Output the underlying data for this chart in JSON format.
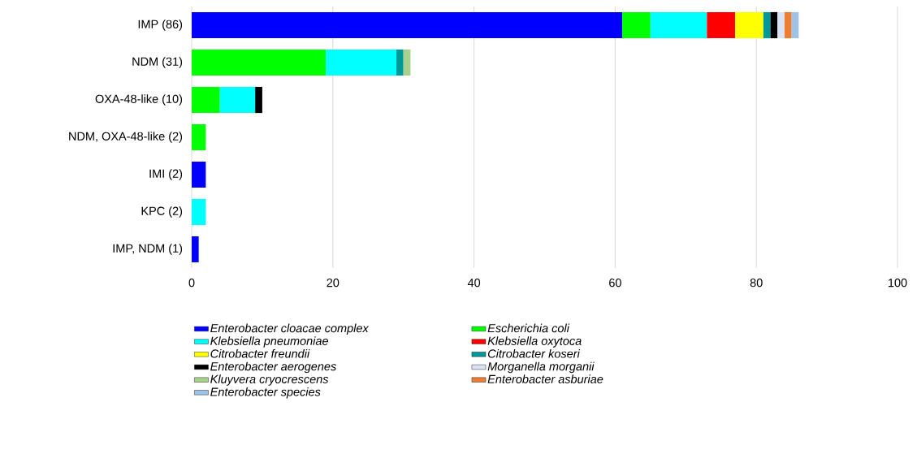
{
  "chart_data": {
    "type": "bar",
    "orientation": "horizontal",
    "stacked": true,
    "categories": [
      "IMP (86)",
      "NDM (31)",
      "OXA-48-like (10)",
      "NDM, OXA-48-like (2)",
      "IMI (2)",
      "KPC (2)",
      "IMP, NDM (1)"
    ],
    "series": [
      {
        "name": "Enterobacter cloacae complex",
        "color": "#0000ff",
        "values": [
          61,
          null,
          null,
          null,
          2,
          null,
          1
        ]
      },
      {
        "name": "Escherichia coli",
        "color": "#00ff00",
        "values": [
          4,
          19,
          4,
          2,
          null,
          null,
          null
        ]
      },
      {
        "name": "Klebsiella pneumoniae",
        "color": "#00ffff",
        "values": [
          8,
          10,
          5,
          null,
          null,
          2,
          null
        ]
      },
      {
        "name": "Klebsiella oxytoca",
        "color": "#ff0000",
        "values": [
          4,
          null,
          null,
          null,
          null,
          null,
          null
        ]
      },
      {
        "name": "Citrobacter freundii",
        "color": "#ffff00",
        "values": [
          4,
          null,
          null,
          null,
          null,
          null,
          null
        ]
      },
      {
        "name": "Citrobacter koseri",
        "color": "#009999",
        "values": [
          1,
          1,
          null,
          null,
          null,
          null,
          null
        ]
      },
      {
        "name": "Enterobacter aerogenes",
        "color": "#000000",
        "values": [
          1,
          null,
          1,
          null,
          null,
          null,
          null
        ]
      },
      {
        "name": "Morganella morganii",
        "color": "#dae3f3",
        "values": [
          1,
          null,
          null,
          null,
          null,
          null,
          null
        ]
      },
      {
        "name": "Kluyvera cryocrescens",
        "color": "#a9d18e",
        "values": [
          null,
          1,
          null,
          null,
          null,
          null,
          null
        ]
      },
      {
        "name": "Enterobacter asburiae",
        "color": "#ed7d31",
        "values": [
          1,
          null,
          null,
          null,
          null,
          null,
          null
        ]
      },
      {
        "name": "Enterobacter species",
        "color": "#9dc3e6",
        "values": [
          1,
          null,
          null,
          null,
          null,
          null,
          null
        ]
      }
    ],
    "xlim": [
      0,
      100
    ],
    "xticks": [
      0,
      20,
      40,
      60,
      80,
      100
    ],
    "grid": "x",
    "legend": "bottom"
  }
}
